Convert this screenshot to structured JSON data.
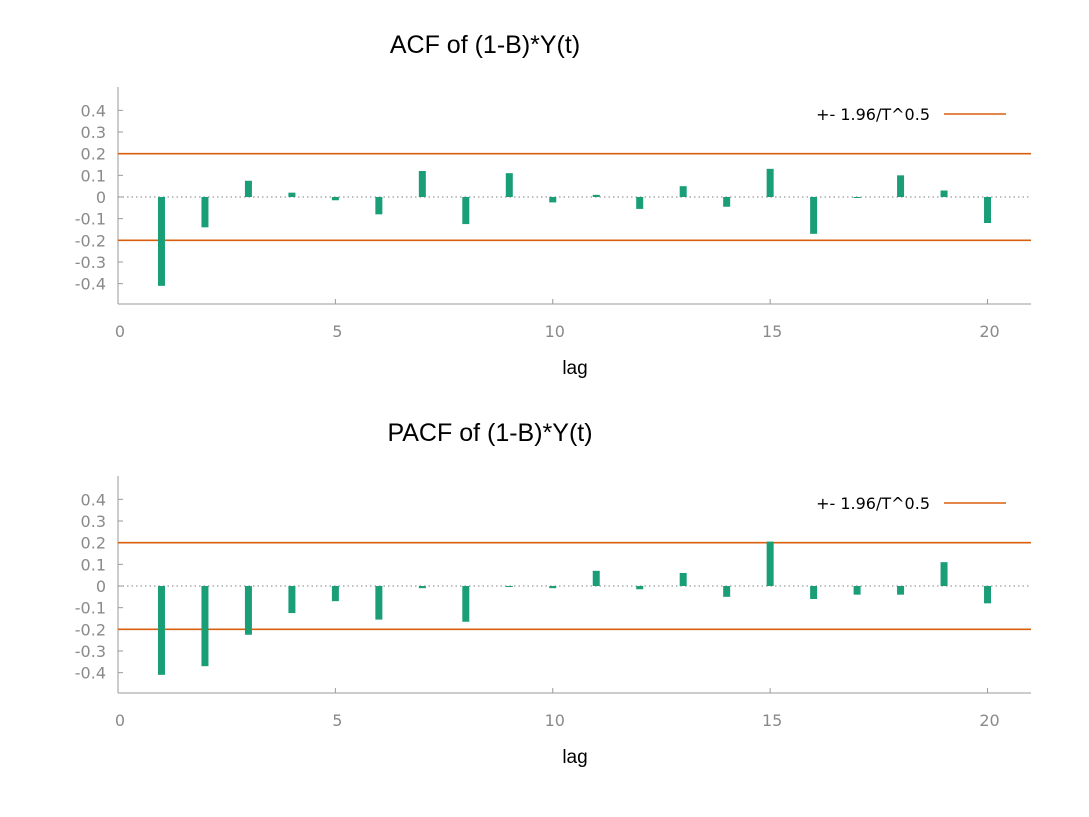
{
  "chart_data": [
    {
      "type": "bar",
      "title": "ACF of (1-B)*Y(t)",
      "xlabel": "lag",
      "ylabel": "",
      "xlim": [
        0,
        21
      ],
      "ylim": [
        -0.5,
        0.5
      ],
      "xticks": [
        "0",
        "5",
        "10",
        "15",
        "20"
      ],
      "yticks": [
        "0.4",
        "0.3",
        "0.2",
        "0.1",
        "0",
        "-0.1",
        "-0.2",
        "-0.3",
        "-0.4"
      ],
      "x": [
        1,
        2,
        3,
        4,
        5,
        6,
        7,
        8,
        9,
        10,
        11,
        12,
        13,
        14,
        15,
        16,
        17,
        18,
        19,
        20
      ],
      "values": [
        -0.41,
        -0.14,
        0.075,
        0.02,
        -0.015,
        -0.08,
        0.12,
        -0.125,
        0.11,
        -0.025,
        0.01,
        -0.055,
        0.05,
        -0.045,
        0.13,
        -0.17,
        0.0,
        0.1,
        0.03,
        -0.12
      ],
      "bar_color": "#1a9e77",
      "bands": {
        "value": 0.2,
        "label": "+- 1.96/T^0.5",
        "color": "#d95f0e"
      },
      "legend": "top-right",
      "grid": false
    },
    {
      "type": "bar",
      "title": "PACF of (1-B)*Y(t)",
      "xlabel": "lag",
      "ylabel": "",
      "xlim": [
        0,
        21
      ],
      "ylim": [
        -0.5,
        0.5
      ],
      "xticks": [
        "0",
        "5",
        "10",
        "15",
        "20"
      ],
      "yticks": [
        "0.4",
        "0.3",
        "0.2",
        "0.1",
        "0",
        "-0.1",
        "-0.2",
        "-0.3",
        "-0.4"
      ],
      "x": [
        1,
        2,
        3,
        4,
        5,
        6,
        7,
        8,
        9,
        10,
        11,
        12,
        13,
        14,
        15,
        16,
        17,
        18,
        19,
        20
      ],
      "values": [
        -0.41,
        -0.37,
        -0.225,
        -0.125,
        -0.07,
        -0.155,
        -0.01,
        -0.165,
        0.0,
        -0.01,
        0.07,
        -0.015,
        0.06,
        -0.05,
        0.205,
        -0.06,
        -0.04,
        -0.04,
        0.11,
        -0.08
      ],
      "bar_color": "#1a9e77",
      "bands": {
        "value": 0.2,
        "label": "+- 1.96/T^0.5",
        "color": "#d95f0e"
      },
      "legend": "top-right",
      "grid": false
    }
  ]
}
